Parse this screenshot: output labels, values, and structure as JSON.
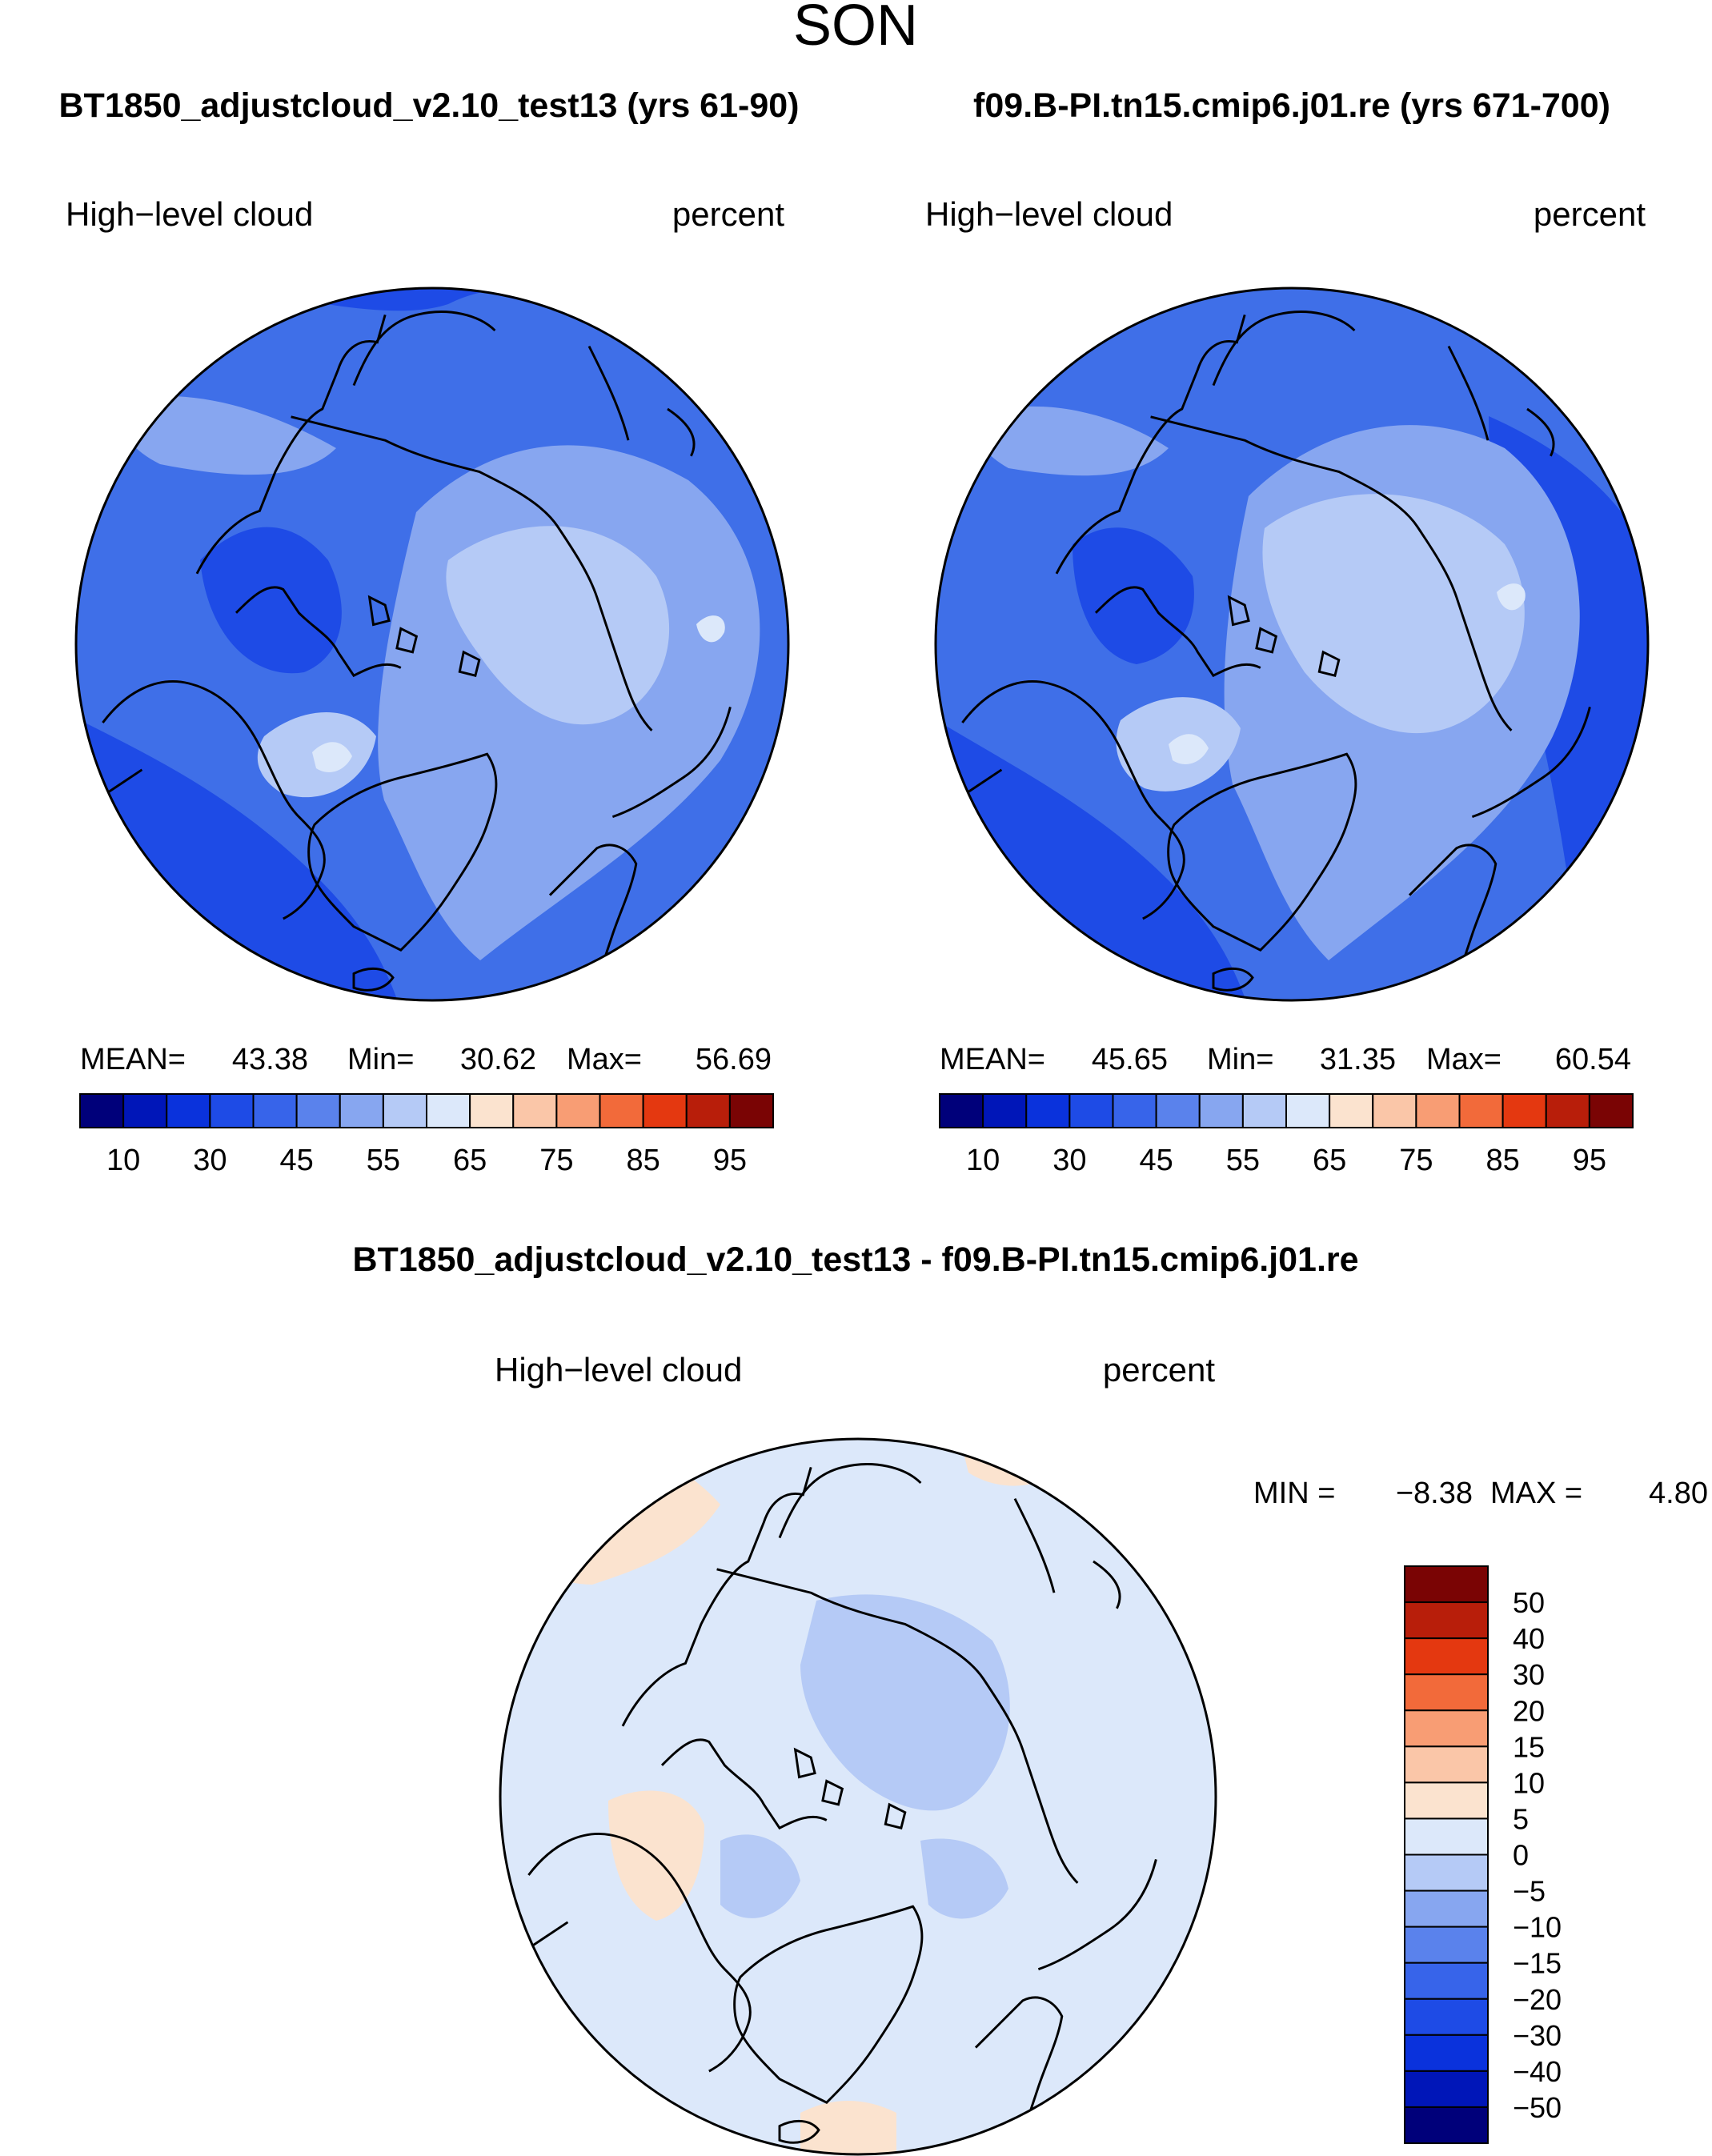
{
  "season": "SON",
  "panels": [
    {
      "title": "BT1850_adjustcloud_v2.10_test13 (yrs 61-90)",
      "variable": "High−level cloud",
      "units": "percent",
      "stats": {
        "mean_label": "MEAN=",
        "mean": "43.38",
        "min_label": "Min=",
        "min": "30.62",
        "max_label": "Max=",
        "max": "56.69"
      }
    },
    {
      "title": "f09.B-PI.tn15.cmip6.j01.re (yrs 671-700)",
      "variable": "High−level cloud",
      "units": "percent",
      "stats": {
        "mean_label": "MEAN=",
        "mean": "45.65",
        "min_label": "Min=",
        "min": "31.35",
        "max_label": "Max=",
        "max": "60.54"
      }
    }
  ],
  "abs_colorbar": {
    "colors": [
      "#00007a",
      "#0016b8",
      "#0a32dc",
      "#1e4be6",
      "#3764ea",
      "#5a82ec",
      "#87a6f0",
      "#b5caf6",
      "#dce8fa",
      "#fbe3cf",
      "#fac6a8",
      "#f89d74",
      "#f26a3a",
      "#e43810",
      "#b81e0a",
      "#7a0404"
    ],
    "tick_labels": [
      "10",
      "30",
      "45",
      "55",
      "65",
      "75",
      "85",
      "95"
    ]
  },
  "diff_panel": {
    "title": "BT1850_adjustcloud_v2.10_test13 - f09.B-PI.tn15.cmip6.j01.re",
    "variable": "High−level cloud",
    "units": "percent",
    "min_label": "MIN =",
    "min": "−8.38",
    "max_label": "MAX =",
    "max": "4.80"
  },
  "diff_colorbar": {
    "colors_top_to_bottom": [
      "#7a0404",
      "#b81e0a",
      "#e43810",
      "#f26a3a",
      "#f89d74",
      "#fac6a8",
      "#fbe3cf",
      "#dce8fa",
      "#b5caf6",
      "#87a6f0",
      "#5a82ec",
      "#3764ea",
      "#1e4be6",
      "#0a32dc",
      "#0016b8",
      "#00007a"
    ],
    "labels": [
      "50",
      "40",
      "30",
      "20",
      "15",
      "10",
      "5",
      "0",
      "−5",
      "−10",
      "−15",
      "−20",
      "−30",
      "−40",
      "−50"
    ]
  },
  "map_colors": {
    "abs_background": "#3f6fe8",
    "abs_light": "#87a6f0",
    "abs_lighter": "#b5caf6",
    "abs_palest": "#dce8fa",
    "abs_dark": "#1e4be6",
    "abs_darker": "#0a32dc",
    "diff_background": "#dce8fa",
    "diff_blue": "#b5caf6",
    "diff_pos": "#fbe3cf",
    "coastline": "#000000"
  },
  "chart_data": {
    "type": "map",
    "projection": "polar stereographic (North Pole)",
    "season": "SON",
    "variable": "High-level cloud",
    "units": "percent",
    "panels": [
      {
        "case": "BT1850_adjustcloud_v2.10_test13",
        "years": "61-90",
        "mean": 43.38,
        "min": 30.62,
        "max": 56.69
      },
      {
        "case": "f09.B-PI.tn15.cmip6.j01.re",
        "years": "671-700",
        "mean": 45.65,
        "min": 31.35,
        "max": 60.54
      },
      {
        "case": "BT1850_adjustcloud_v2.10_test13 - f09.B-PI.tn15.cmip6.j01.re",
        "min": -8.38,
        "max": 4.8
      }
    ],
    "abs_levels": [
      10,
      30,
      45,
      55,
      65,
      75,
      85,
      95
    ],
    "diff_levels": [
      -50,
      -40,
      -30,
      -20,
      -15,
      -10,
      -5,
      0,
      5,
      10,
      15,
      20,
      30,
      40,
      50
    ]
  }
}
